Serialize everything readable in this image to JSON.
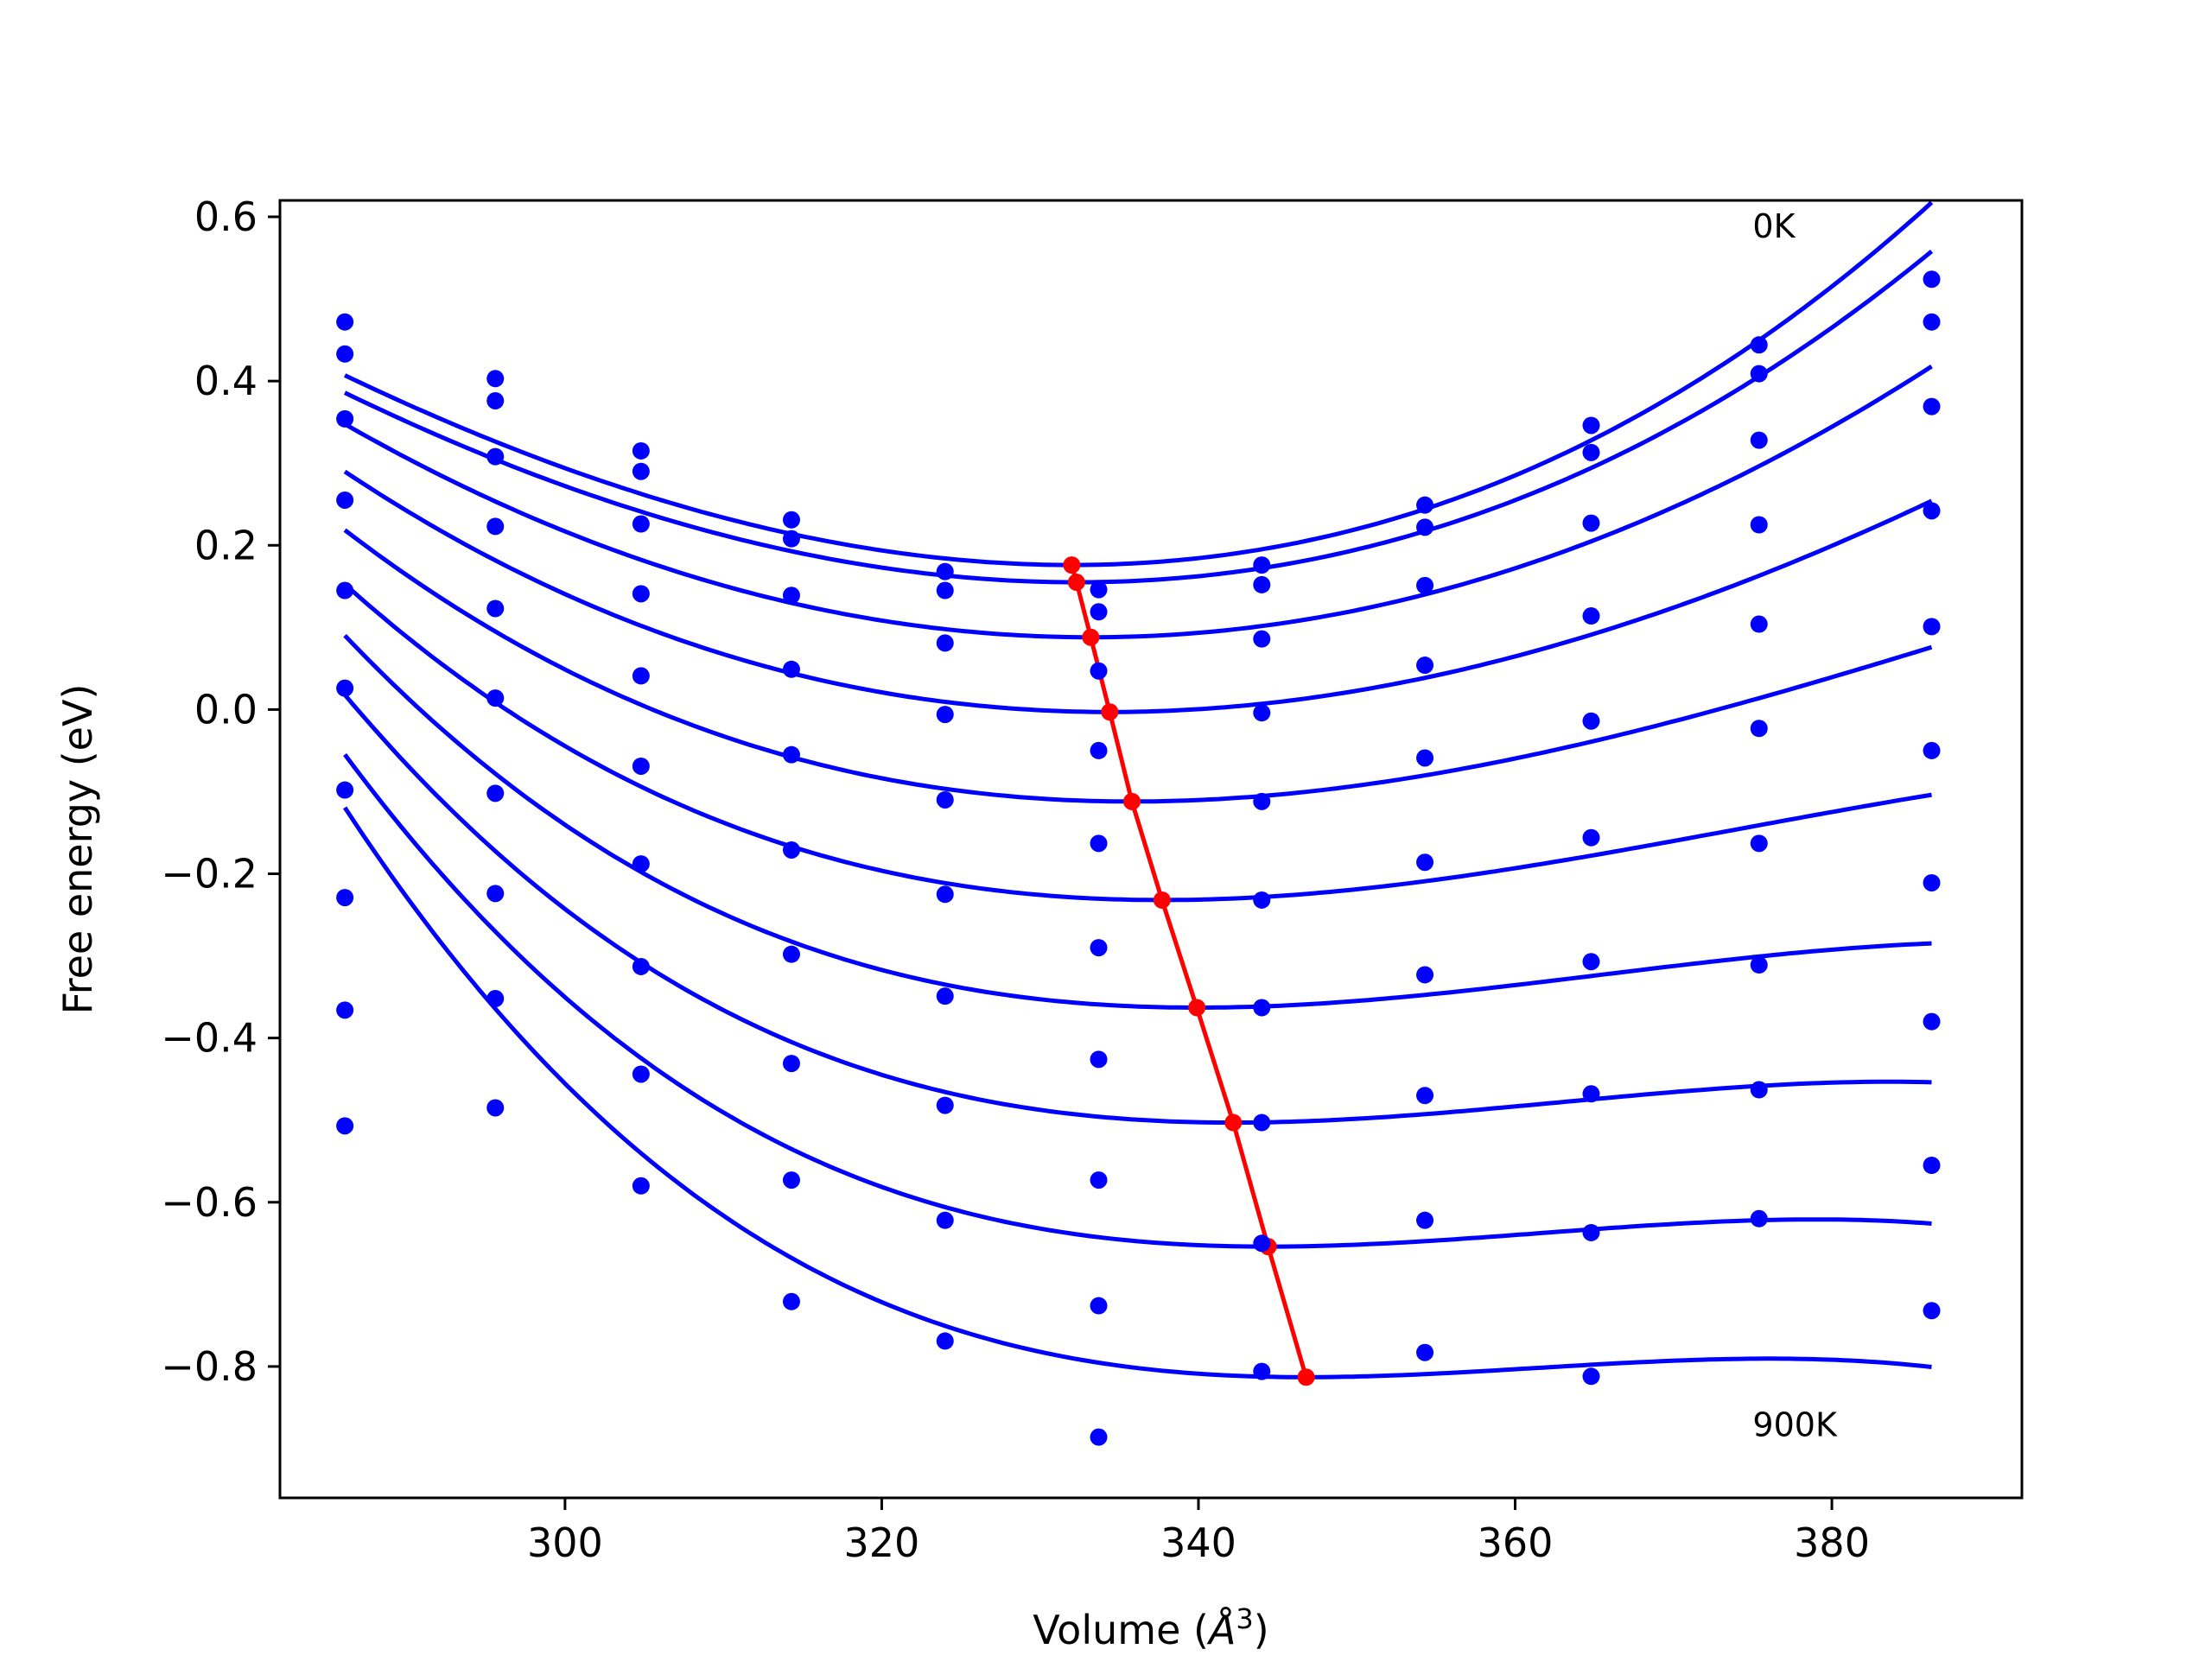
{
  "chart_data": {
    "type": "scatter",
    "xlabel": "Volume (",
    "xlabel_unit_symbol": "Å",
    "xlabel_unit_power": "3",
    "xlabel_close": ")",
    "ylabel": "Free energy (eV)",
    "xlim": [
      282,
      392
    ],
    "ylim": [
      -0.96,
      0.62
    ],
    "x_ticks": [
      300,
      320,
      340,
      360,
      380
    ],
    "x_tick_labels": [
      "300",
      "320",
      "340",
      "360",
      "380"
    ],
    "y_ticks": [
      0.6,
      0.4,
      0.2,
      0.0,
      -0.2,
      -0.4,
      -0.6,
      -0.8
    ],
    "y_tick_labels": [
      "0.6",
      "0.4",
      "0.2",
      "0.0",
      "−0.2",
      "−0.4",
      "−0.6",
      "−0.8"
    ],
    "annotations": [
      {
        "text": "0K",
        "x": 375,
        "y": 0.575
      },
      {
        "text": "900K",
        "x": 375,
        "y": -0.885
      }
    ],
    "volumes": [
      286.1,
      295.6,
      304.8,
      314.3,
      324.0,
      333.7,
      344.0,
      354.3,
      364.8,
      375.4,
      386.3
    ],
    "points": [
      {
        "x": 286.1,
        "y": [
          0.472,
          0.433,
          0.354,
          0.255,
          0.145,
          0.026,
          -0.098,
          -0.229,
          -0.366,
          -0.507
        ]
      },
      {
        "x": 295.6,
        "y": [
          0.403,
          0.376,
          0.308,
          0.223,
          0.123,
          0.014,
          -0.102,
          -0.224,
          -0.352,
          -0.485
        ]
      },
      {
        "x": 304.8,
        "y": [
          0.315,
          0.29,
          0.226,
          0.141,
          0.041,
          -0.069,
          -0.188,
          -0.313,
          -0.444,
          -0.58
        ]
      },
      {
        "x": 314.3,
        "y": [
          0.231,
          0.208,
          0.139,
          0.049,
          -0.055,
          -0.171,
          -0.298,
          -0.431,
          -0.573,
          -0.721
        ]
      },
      {
        "x": 324.0,
        "y": [
          0.168,
          0.145,
          0.081,
          -0.006,
          -0.11,
          -0.225,
          -0.349,
          -0.482,
          -0.622,
          -0.769
        ]
      },
      {
        "x": 333.7,
        "y": [
          0.146,
          0.119,
          0.047,
          -0.05,
          -0.163,
          -0.29,
          -0.426,
          -0.573,
          -0.726,
          -0.886
        ]
      },
      {
        "x": 344.0,
        "y": [
          0.176,
          0.152,
          0.086,
          -0.004,
          -0.112,
          -0.232,
          -0.363,
          -0.503,
          -0.65,
          -0.806
        ]
      },
      {
        "x": 354.3,
        "y": [
          0.249,
          0.222,
          0.151,
          0.054,
          -0.059,
          -0.186,
          -0.323,
          -0.47,
          -0.622,
          -0.783
        ]
      },
      {
        "x": 364.8,
        "y": [
          0.346,
          0.313,
          0.227,
          0.114,
          -0.014,
          -0.156,
          -0.307,
          -0.468,
          -0.637,
          -0.812
        ]
      },
      {
        "x": 375.4,
        "y": [
          0.444,
          0.409,
          0.328,
          0.225,
          0.104,
          -0.023,
          -0.163,
          -0.311,
          -0.463,
          -0.62
        ]
      },
      {
        "x": 386.3,
        "y": [
          0.524,
          0.472,
          0.369,
          0.242,
          0.101,
          -0.05,
          -0.211,
          -0.38,
          -0.555,
          -0.732
        ]
      }
    ],
    "fit_curves": [
      {
        "v0": 332.0,
        "e0": 0.176,
        "a": 0.000128,
        "b": 4e-07
      },
      {
        "v0": 332.3,
        "e0": 0.155,
        "a": 0.000122,
        "b": 3e-07
      },
      {
        "v0": 333.2,
        "e0": 0.088,
        "a": 0.000117,
        "b": 0.0
      },
      {
        "v0": 334.4,
        "e0": -0.003,
        "a": 0.000111,
        "b": -3e-07
      },
      {
        "v0": 335.8,
        "e0": -0.112,
        "a": 0.000104,
        "b": -6e-07
      },
      {
        "v0": 337.7,
        "e0": -0.232,
        "a": 9.8e-05,
        "b": -9e-07
      },
      {
        "v0": 339.9,
        "e0": -0.363,
        "a": 9.2e-05,
        "b": -1.2e-06
      },
      {
        "v0": 342.2,
        "e0": -0.503,
        "a": 8.7e-05,
        "b": -1.4e-06
      },
      {
        "v0": 344.4,
        "e0": -0.654,
        "a": 8.3e-05,
        "b": -1.6e-06
      },
      {
        "v0": 346.8,
        "e0": -0.813,
        "a": 7.9e-05,
        "b": -1.8e-06
      }
    ],
    "minima_path": {
      "x": [
        332.0,
        332.3,
        333.2,
        334.4,
        335.8,
        337.7,
        339.9,
        342.2,
        344.4,
        346.8
      ],
      "y": [
        0.176,
        0.155,
        0.088,
        -0.003,
        -0.112,
        -0.232,
        -0.363,
        -0.503,
        -0.654,
        -0.813
      ]
    },
    "colors": {
      "points": "#0000ff",
      "curves": "#0000ff",
      "minima": "#ff0000",
      "axes": "#000000"
    },
    "grid": false
  }
}
